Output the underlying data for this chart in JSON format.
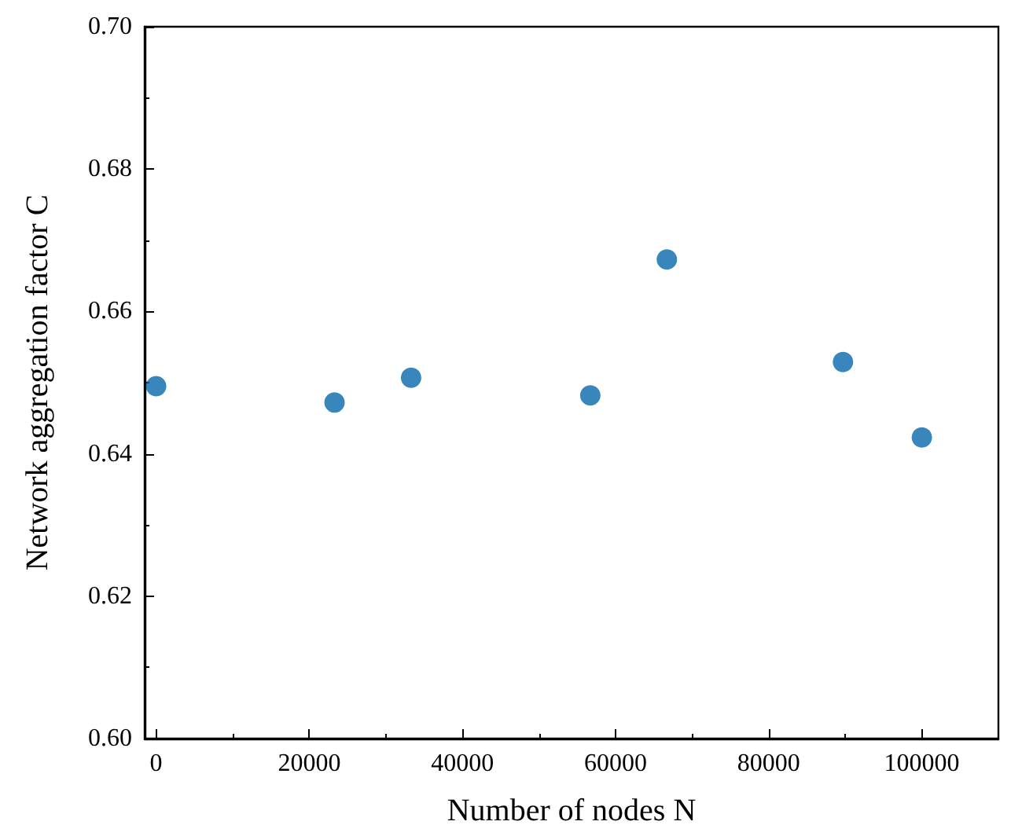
{
  "chart_data": {
    "type": "scatter",
    "xlabel": "Number of nodes N",
    "ylabel": "Network aggregation factor C",
    "x": [
      0,
      23300,
      33300,
      56700,
      66700,
      89700,
      100000
    ],
    "series": [
      {
        "color": "#0868ac",
        "values": [
          0.6495,
          0.6472,
          0.6507,
          0.6482,
          0.6673,
          0.6529,
          0.6423
        ]
      }
    ],
    "xlim": [
      -1500,
      110000
    ],
    "xticks": [
      0,
      20000,
      40000,
      60000,
      80000,
      100000
    ],
    "ylim": [
      0.6,
      0.7
    ],
    "yticks": [
      {
        "value": 0.6,
        "label": "0.60"
      },
      0.62,
      0.64,
      0.66,
      0.68,
      {
        "value": 0.7,
        "label": "0.70"
      }
    ],
    "marker": "circle",
    "grid": false
  }
}
